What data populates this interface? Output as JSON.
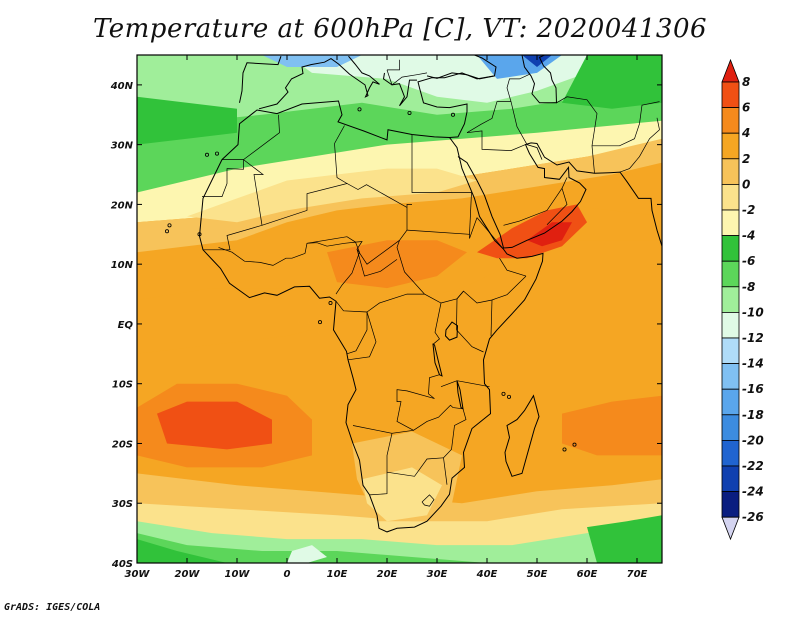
{
  "title": "Temperature at 600hPa [C], VT: 2020041306",
  "footer": "GrADS: IGES/COLA",
  "map": {
    "lon_range": [
      -30,
      75
    ],
    "lat_range": [
      -40,
      45
    ],
    "lon_ticks": [
      {
        "value": -30,
        "label": "30W"
      },
      {
        "value": -20,
        "label": "20W"
      },
      {
        "value": -10,
        "label": "10W"
      },
      {
        "value": 0,
        "label": "0"
      },
      {
        "value": 10,
        "label": "10E"
      },
      {
        "value": 20,
        "label": "20E"
      },
      {
        "value": 30,
        "label": "30E"
      },
      {
        "value": 40,
        "label": "40E"
      },
      {
        "value": 50,
        "label": "50E"
      },
      {
        "value": 60,
        "label": "60E"
      },
      {
        "value": 70,
        "label": "70E"
      }
    ],
    "lat_ticks": [
      {
        "value": 40,
        "label": "40N"
      },
      {
        "value": 30,
        "label": "30N"
      },
      {
        "value": 20,
        "label": "20N"
      },
      {
        "value": 10,
        "label": "10N"
      },
      {
        "value": 0,
        "label": "EQ"
      },
      {
        "value": -10,
        "label": "10S"
      },
      {
        "value": -20,
        "label": "20S"
      },
      {
        "value": -30,
        "label": "30S"
      },
      {
        "value": -40,
        "label": "40S"
      }
    ],
    "background_color": "#f5a623"
  },
  "colorbar": {
    "labels": [
      "8",
      "6",
      "4",
      "2",
      "0",
      "-2",
      "-4",
      "-6",
      "-8",
      "-10",
      "-12",
      "-14",
      "-16",
      "-18",
      "-20",
      "-22",
      "-24",
      "-26"
    ],
    "colors": [
      "#e02010",
      "#f05014",
      "#f58a1c",
      "#f5a623",
      "#f7c35a",
      "#fbe28c",
      "#fdf6b0",
      "#31c23a",
      "#5cd65a",
      "#a0ee9a",
      "#e0fae6",
      "#b0dcf8",
      "#80c0f2",
      "#5aa6ec",
      "#3c8ce0",
      "#2064d0",
      "#1040b0",
      "#0a1e80",
      "#d4d4f0"
    ]
  }
}
